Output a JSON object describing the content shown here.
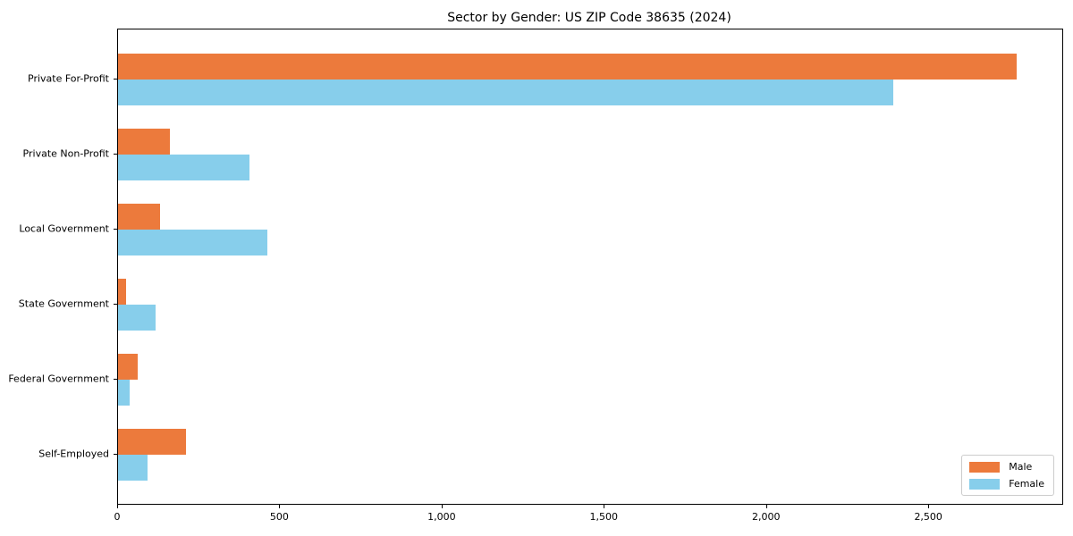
{
  "chart_data": {
    "type": "bar",
    "orientation": "horizontal",
    "title": "Sector by Gender: US ZIP Code 38635 (2024)",
    "categories": [
      "Private For-Profit",
      "Private Non-Profit",
      "Local Government",
      "State Government",
      "Federal Government",
      "Self-Employed"
    ],
    "series": [
      {
        "name": "Male",
        "color": "#EC7A3C",
        "values": [
          2770,
          160,
          130,
          25,
          60,
          210
        ]
      },
      {
        "name": "Female",
        "color": "#87CEEB",
        "values": [
          2390,
          405,
          460,
          115,
          35,
          90
        ]
      }
    ],
    "xlim": [
      0,
      2910
    ],
    "x_ticks": [
      {
        "value": 0,
        "label": "0"
      },
      {
        "value": 500,
        "label": "500"
      },
      {
        "value": 1000,
        "label": "1,000"
      },
      {
        "value": 1500,
        "label": "1,500"
      },
      {
        "value": 2000,
        "label": "2,000"
      },
      {
        "value": 2500,
        "label": "2,500"
      }
    ],
    "xlabel": "",
    "ylabel": "",
    "grid": false,
    "legend": {
      "position": "lower right",
      "entries": [
        "Male",
        "Female"
      ]
    }
  }
}
